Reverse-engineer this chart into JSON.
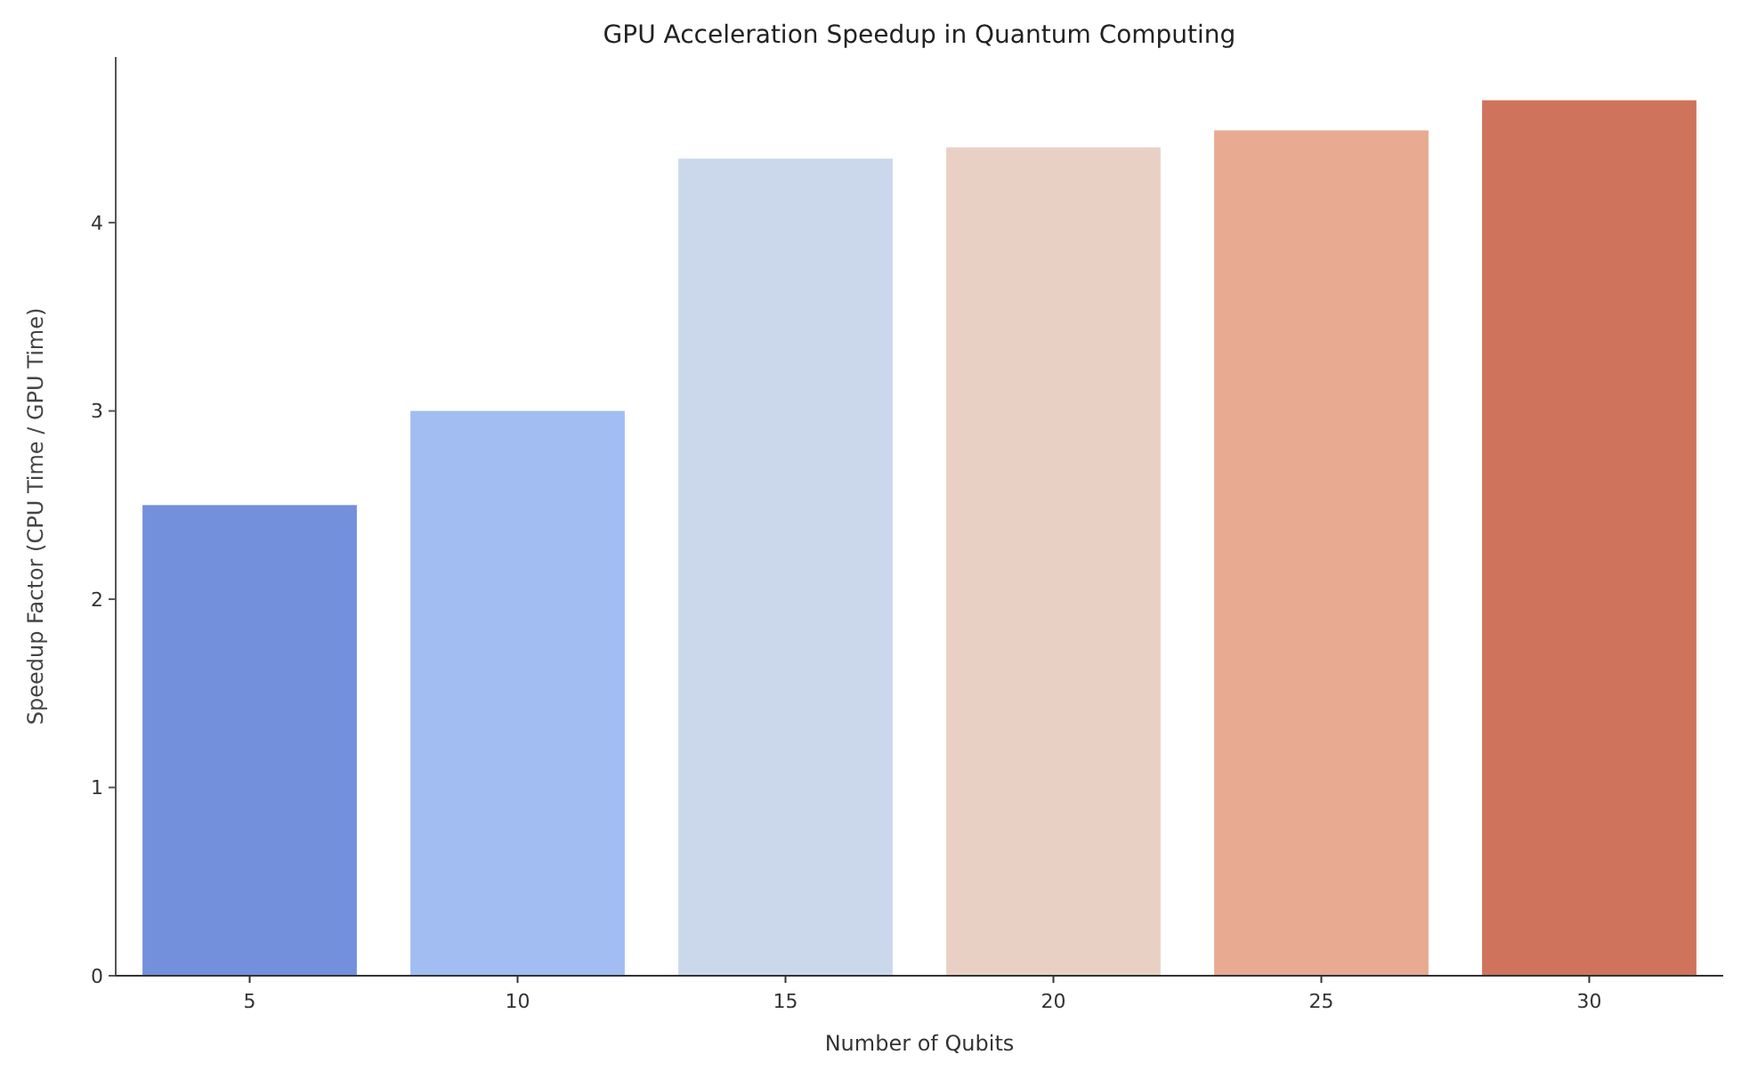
{
  "chart_data": {
    "type": "bar",
    "title": "GPU Acceleration Speedup in Quantum Computing",
    "xlabel": "Number of Qubits",
    "ylabel": "Speedup Factor (CPU Time / GPU Time)",
    "categories": [
      "5",
      "10",
      "15",
      "20",
      "25",
      "30"
    ],
    "values": [
      2.5,
      3.0,
      4.34,
      4.4,
      4.49,
      4.65
    ],
    "colors": [
      "#7390dc",
      "#a2bdf1",
      "#cbd8ec",
      "#e8d1c4",
      "#e8aa90",
      "#cf735d"
    ],
    "ylim": [
      0,
      4.88
    ],
    "yticks": [
      0,
      1,
      2,
      3,
      4
    ],
    "grid": false
  }
}
